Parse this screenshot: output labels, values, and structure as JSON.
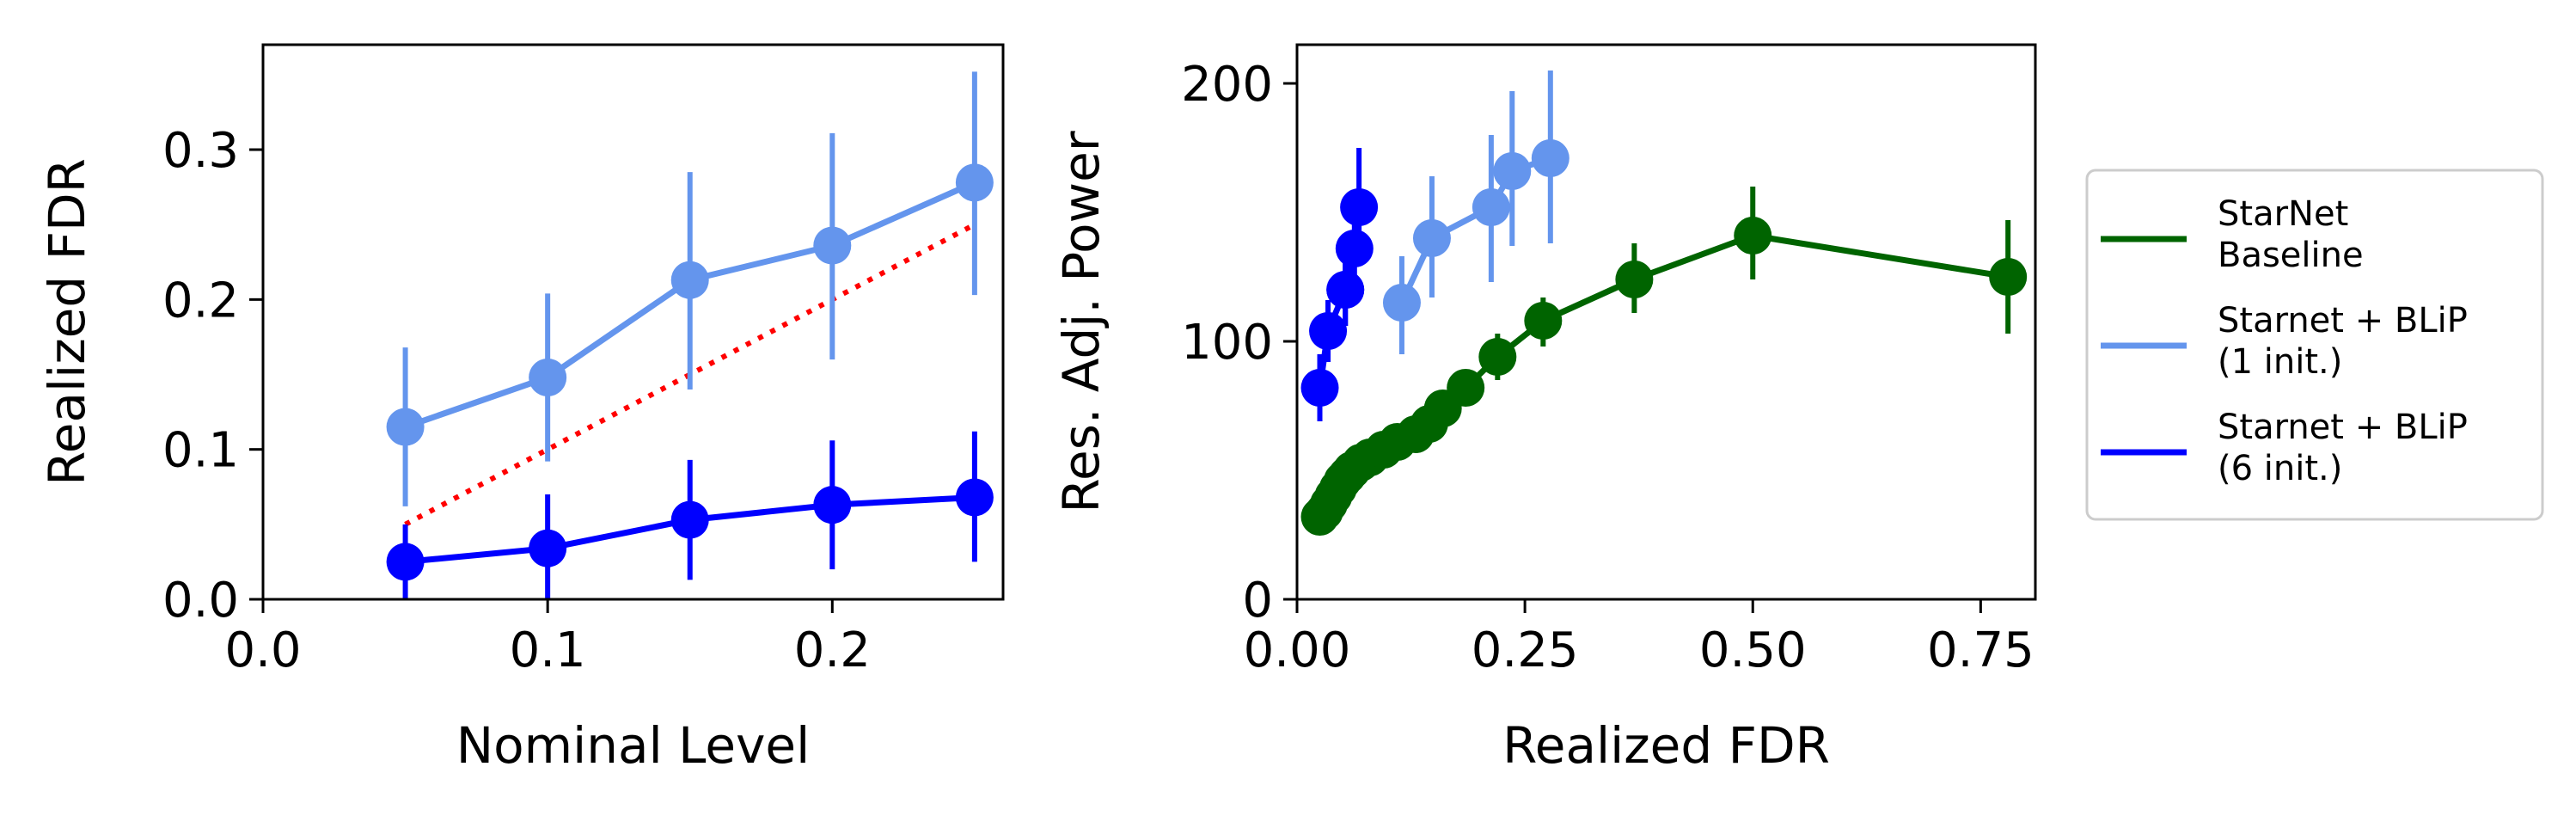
{
  "chart_data": [
    {
      "type": "line",
      "xlabel": "Nominal Level",
      "ylabel": "Realized FDR",
      "xlim": [
        0.0,
        0.26
      ],
      "ylim": [
        0.0,
        0.37
      ],
      "xticks": [
        "0.0",
        "0.1",
        "0.2"
      ],
      "yticks": [
        "0.0",
        "0.1",
        "0.2",
        "0.3"
      ],
      "grid": false,
      "series": [
        {
          "color": "#6495ED",
          "x": [
            0.05,
            0.1,
            0.15,
            0.2,
            0.25
          ],
          "y": [
            0.115,
            0.148,
            0.213,
            0.236,
            0.278
          ],
          "err_low": [
            0.062,
            0.092,
            0.14,
            0.16,
            0.203
          ],
          "err_high": [
            0.168,
            0.204,
            0.285,
            0.311,
            0.352
          ]
        },
        {
          "color": "#0000FF",
          "x": [
            0.05,
            0.1,
            0.15,
            0.2,
            0.25
          ],
          "y": [
            0.025,
            0.034,
            0.053,
            0.063,
            0.068
          ],
          "err_low": [
            0.0,
            0.0,
            0.013,
            0.02,
            0.025
          ],
          "err_high": [
            0.05,
            0.07,
            0.093,
            0.106,
            0.112
          ]
        }
      ],
      "reference_line": {
        "color": "#FF0000",
        "style": "dotted",
        "x": [
          0.05,
          0.25
        ],
        "y": [
          0.05,
          0.25
        ]
      }
    },
    {
      "type": "line",
      "xlabel": "Realized FDR",
      "ylabel": "Res. Adj. Power",
      "xlim": [
        0.0,
        0.81
      ],
      "ylim": [
        0,
        215
      ],
      "xticks": [
        "0.00",
        "0.25",
        "0.50",
        "0.75"
      ],
      "yticks": [
        "0",
        "100",
        "200"
      ],
      "grid": false,
      "legend_position": "outside-right",
      "series": [
        {
          "name": "StarNet\nBaseline",
          "color": "#006400",
          "x": [
            0.025,
            0.03,
            0.035,
            0.04,
            0.045,
            0.05,
            0.055,
            0.06,
            0.07,
            0.08,
            0.095,
            0.11,
            0.13,
            0.145,
            0.16,
            0.185,
            0.22,
            0.27,
            0.37,
            0.5,
            0.78
          ],
          "y": [
            32,
            34,
            37,
            40,
            43,
            46,
            48,
            50,
            53,
            55,
            58,
            61,
            64,
            68,
            74,
            82,
            94,
            108,
            124,
            141,
            125
          ],
          "err_low": [
            null,
            null,
            null,
            null,
            null,
            null,
            null,
            null,
            null,
            null,
            null,
            null,
            null,
            null,
            null,
            null,
            85,
            98,
            111,
            124,
            103
          ],
          "err_high": [
            null,
            null,
            null,
            null,
            null,
            null,
            null,
            null,
            null,
            null,
            null,
            null,
            null,
            null,
            null,
            null,
            103,
            117,
            138,
            160,
            147
          ]
        },
        {
          "name": "Starnet + BLiP\n(1 init.)",
          "color": "#6495ED",
          "x": [
            0.115,
            0.148,
            0.213,
            0.236,
            0.278
          ],
          "y": [
            115,
            140,
            152,
            166,
            171
          ],
          "err_low": [
            95,
            117,
            123,
            137,
            138
          ],
          "err_high": [
            133,
            164,
            180,
            197,
            205
          ]
        },
        {
          "name": "Starnet + BLiP\n(6 init.)",
          "color": "#0000FF",
          "x": [
            0.025,
            0.034,
            0.053,
            0.053,
            0.063,
            0.068
          ],
          "y": [
            82,
            104,
            120,
            120,
            136,
            152
          ],
          "err_low": [
            69,
            92,
            106,
            106,
            121,
            138
          ],
          "err_high": [
            95,
            116,
            134,
            134,
            150,
            175
          ]
        }
      ]
    }
  ]
}
